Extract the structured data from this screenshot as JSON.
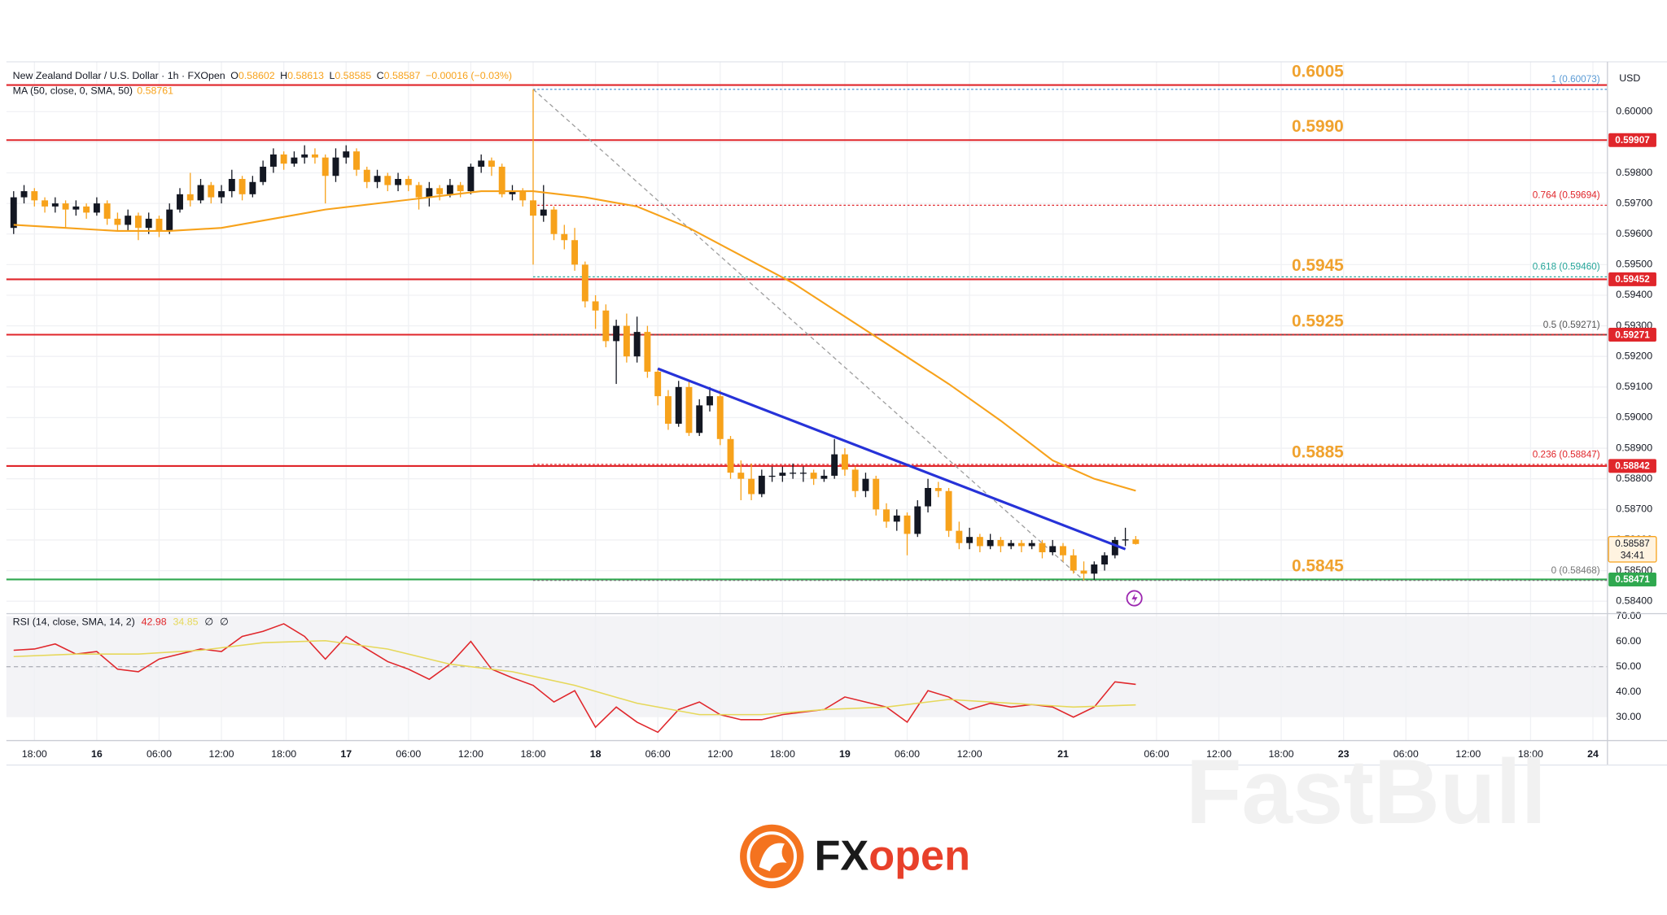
{
  "chart_data": [
    {
      "type": "candlestick",
      "title": "New Zealand Dollar / U.S. Dollar · 1h · FXOpen",
      "ohlc_legend": [
        {
          "key": "O",
          "value": 0.58602
        },
        {
          "key": "H",
          "value": 0.58613
        },
        {
          "key": "L",
          "value": 0.58585
        },
        {
          "key": "C",
          "value": 0.58587
        }
      ],
      "change": "−0.00016 (−0.03%)",
      "currency": "USD",
      "up_color": "#131722",
      "down_color": "#f7a21b",
      "x": [
        0,
        1,
        2,
        3,
        4,
        5,
        6,
        7,
        8,
        9,
        10,
        11,
        12,
        13,
        14,
        15,
        16,
        17,
        18,
        19,
        20,
        21,
        22,
        23,
        24,
        25,
        26,
        27,
        28,
        29,
        30,
        31,
        32,
        33,
        34,
        35,
        36,
        37,
        38,
        39,
        40,
        41,
        42,
        43,
        44,
        45,
        46,
        47,
        48,
        49,
        50,
        51,
        52,
        53,
        54,
        55,
        56,
        57,
        58,
        59,
        60,
        61,
        62,
        63,
        64,
        65,
        66,
        67,
        68,
        69,
        70,
        71,
        72,
        73,
        74,
        75,
        76,
        77,
        78,
        79,
        80,
        81,
        82,
        83,
        84,
        85,
        86,
        87,
        88,
        89,
        90,
        91,
        92,
        93,
        94,
        95,
        96,
        97,
        98,
        99,
        100,
        101,
        102,
        103,
        104,
        105,
        106,
        107,
        108
      ],
      "open": [
        0.5962,
        0.5972,
        0.5974,
        0.5971,
        0.5969,
        0.597,
        0.5968,
        0.5969,
        0.5967,
        0.597,
        0.5965,
        0.5963,
        0.5966,
        0.5962,
        0.5965,
        0.5961,
        0.5968,
        0.5973,
        0.5971,
        0.5976,
        0.5972,
        0.5974,
        0.5978,
        0.5973,
        0.5977,
        0.5982,
        0.5986,
        0.5983,
        0.5985,
        0.5986,
        0.5985,
        0.5979,
        0.5985,
        0.5987,
        0.5981,
        0.5977,
        0.5979,
        0.5976,
        0.5978,
        0.5976,
        0.5972,
        0.5975,
        0.5973,
        0.5976,
        0.5974,
        0.5982,
        0.5984,
        0.5982,
        0.5973,
        0.5974,
        0.5971,
        0.5966,
        0.5968,
        0.596,
        0.5958,
        0.595,
        0.5938,
        0.5935,
        0.5925,
        0.593,
        0.592,
        0.5928,
        0.5915,
        0.5907,
        0.5898,
        0.591,
        0.5895,
        0.5904,
        0.5907,
        0.5893,
        0.5882,
        0.588,
        0.5875,
        0.5881,
        0.5881,
        0.5882,
        0.5882,
        0.5882,
        0.588,
        0.5881,
        0.5888,
        0.5883,
        0.5876,
        0.588,
        0.587,
        0.5866,
        0.5868,
        0.5862,
        0.5871,
        0.5877,
        0.5876,
        0.5863,
        0.5859,
        0.5861,
        0.5858,
        0.586,
        0.5858,
        0.5859,
        0.5858,
        0.5859,
        0.5856,
        0.5858,
        0.5855,
        0.585,
        0.5849,
        0.5852,
        0.5855,
        0.586,
        0.58602
      ],
      "high": [
        0.5974,
        0.5976,
        0.5975,
        0.5972,
        0.5972,
        0.5971,
        0.5971,
        0.597,
        0.5972,
        0.5971,
        0.5967,
        0.5968,
        0.5967,
        0.5967,
        0.5966,
        0.597,
        0.5975,
        0.598,
        0.5978,
        0.5977,
        0.5976,
        0.5981,
        0.5979,
        0.5979,
        0.5984,
        0.5988,
        0.5987,
        0.5987,
        0.5989,
        0.5988,
        0.5986,
        0.5988,
        0.5989,
        0.5988,
        0.5982,
        0.5981,
        0.598,
        0.598,
        0.5979,
        0.5977,
        0.5977,
        0.5976,
        0.5978,
        0.5977,
        0.5983,
        0.5986,
        0.5985,
        0.5983,
        0.5976,
        0.5975,
        0.60073,
        0.5976,
        0.5969,
        0.5963,
        0.5962,
        0.5951,
        0.594,
        0.5937,
        0.5932,
        0.5934,
        0.5933,
        0.593,
        0.5916,
        0.5909,
        0.5912,
        0.5912,
        0.5906,
        0.591,
        0.5909,
        0.5894,
        0.5886,
        0.5885,
        0.5883,
        0.5884,
        0.5884,
        0.5885,
        0.5884,
        0.5883,
        0.5883,
        0.5893,
        0.589,
        0.5884,
        0.5882,
        0.5881,
        0.5872,
        0.587,
        0.5869,
        0.5873,
        0.588,
        0.5879,
        0.5877,
        0.5866,
        0.5864,
        0.5862,
        0.5862,
        0.5861,
        0.586,
        0.586,
        0.586,
        0.586,
        0.586,
        0.5859,
        0.5857,
        0.5853,
        0.5853,
        0.5856,
        0.5861,
        0.5864,
        0.58613
      ],
      "low": [
        0.596,
        0.597,
        0.5969,
        0.5967,
        0.5967,
        0.5962,
        0.5966,
        0.5965,
        0.5966,
        0.5963,
        0.5961,
        0.5961,
        0.5958,
        0.596,
        0.5959,
        0.596,
        0.5967,
        0.5969,
        0.597,
        0.597,
        0.597,
        0.5972,
        0.5971,
        0.5972,
        0.5976,
        0.598,
        0.5981,
        0.5982,
        0.5983,
        0.5983,
        0.597,
        0.5977,
        0.5983,
        0.5979,
        0.5975,
        0.5975,
        0.5974,
        0.5974,
        0.5974,
        0.5968,
        0.5969,
        0.5971,
        0.5972,
        0.5972,
        0.5973,
        0.598,
        0.5979,
        0.5972,
        0.5971,
        0.5969,
        0.595,
        0.5964,
        0.5958,
        0.5955,
        0.5948,
        0.5936,
        0.5929,
        0.5923,
        0.5911,
        0.5918,
        0.5918,
        0.5913,
        0.5904,
        0.5896,
        0.5897,
        0.5894,
        0.5894,
        0.5902,
        0.5891,
        0.588,
        0.5873,
        0.5873,
        0.5874,
        0.5879,
        0.5879,
        0.588,
        0.5879,
        0.5878,
        0.5879,
        0.588,
        0.5881,
        0.5874,
        0.5874,
        0.5868,
        0.5864,
        0.5863,
        0.5855,
        0.5861,
        0.5869,
        0.5874,
        0.5861,
        0.5857,
        0.5857,
        0.5856,
        0.5857,
        0.5856,
        0.5857,
        0.5856,
        0.5857,
        0.5854,
        0.5855,
        0.5853,
        0.5849,
        0.58468,
        0.5847,
        0.585,
        0.5854,
        0.5858,
        0.58585
      ],
      "close": [
        0.5972,
        0.5974,
        0.5971,
        0.5969,
        0.597,
        0.5968,
        0.5969,
        0.5967,
        0.597,
        0.5965,
        0.5963,
        0.5966,
        0.5962,
        0.5965,
        0.5961,
        0.5968,
        0.5973,
        0.5971,
        0.5976,
        0.5972,
        0.5974,
        0.5978,
        0.5973,
        0.5977,
        0.5982,
        0.5986,
        0.5983,
        0.5985,
        0.5986,
        0.5985,
        0.5979,
        0.5985,
        0.5987,
        0.5981,
        0.5977,
        0.5979,
        0.5976,
        0.5978,
        0.5976,
        0.5972,
        0.5975,
        0.5973,
        0.5976,
        0.5974,
        0.5982,
        0.5984,
        0.5982,
        0.5973,
        0.5974,
        0.5971,
        0.5966,
        0.5968,
        0.596,
        0.5958,
        0.595,
        0.5938,
        0.5935,
        0.5925,
        0.593,
        0.592,
        0.5928,
        0.5915,
        0.5907,
        0.5898,
        0.591,
        0.5895,
        0.5904,
        0.5907,
        0.5893,
        0.5882,
        0.588,
        0.5875,
        0.5881,
        0.5881,
        0.5882,
        0.5882,
        0.5882,
        0.588,
        0.5881,
        0.5888,
        0.5883,
        0.5876,
        0.588,
        0.587,
        0.5866,
        0.5868,
        0.5862,
        0.5871,
        0.5877,
        0.5876,
        0.5863,
        0.5859,
        0.5861,
        0.5858,
        0.586,
        0.5858,
        0.5859,
        0.5858,
        0.5859,
        0.5856,
        0.5858,
        0.5855,
        0.585,
        0.5849,
        0.5852,
        0.5855,
        0.586,
        0.58602,
        0.58587
      ],
      "xlim": [
        -0.7,
        153.4
      ],
      "xticks": [
        {
          "value": 2,
          "label": "18:00"
        },
        {
          "value": 8,
          "label": "16"
        },
        {
          "value": 14,
          "label": "06:00"
        },
        {
          "value": 20,
          "label": "12:00"
        },
        {
          "value": 26,
          "label": "18:00"
        },
        {
          "value": 32,
          "label": "17"
        },
        {
          "value": 38,
          "label": "06:00"
        },
        {
          "value": 44,
          "label": "12:00"
        },
        {
          "value": 50,
          "label": "18:00"
        },
        {
          "value": 56,
          "label": "18"
        },
        {
          "value": 62,
          "label": "06:00"
        },
        {
          "value": 68,
          "label": "12:00"
        },
        {
          "value": 74,
          "label": "18:00"
        },
        {
          "value": 80,
          "label": "19"
        },
        {
          "value": 86,
          "label": "06:00"
        },
        {
          "value": 92,
          "label": "12:00"
        },
        {
          "value": 101,
          "label": "21"
        },
        {
          "value": 110,
          "label": "06:00"
        },
        {
          "value": 116,
          "label": "12:00"
        },
        {
          "value": 122,
          "label": "18:00"
        },
        {
          "value": 128,
          "label": "23"
        },
        {
          "value": 134,
          "label": "06:00"
        },
        {
          "value": 140,
          "label": "12:00"
        },
        {
          "value": 146,
          "label": "18:00"
        },
        {
          "value": 152,
          "label": "24"
        }
      ],
      "ylim": [
        0.58361,
        0.60149
      ],
      "yticks": [
        {
          "value": 0.584,
          "label": "0.58400"
        },
        {
          "value": 0.585,
          "label": "0.58500"
        },
        {
          "value": 0.586,
          "label": "0.58600"
        },
        {
          "value": 0.587,
          "label": "0.58700"
        },
        {
          "value": 0.588,
          "label": "0.58800"
        },
        {
          "value": 0.589,
          "label": "0.58900"
        },
        {
          "value": 0.59,
          "label": "0.59000"
        },
        {
          "value": 0.591,
          "label": "0.59100"
        },
        {
          "value": 0.592,
          "label": "0.59200"
        },
        {
          "value": 0.593,
          "label": "0.59300"
        },
        {
          "value": 0.594,
          "label": "0.59400"
        },
        {
          "value": 0.595,
          "label": "0.59500"
        },
        {
          "value": 0.596,
          "label": "0.59600"
        },
        {
          "value": 0.597,
          "label": "0.59700"
        },
        {
          "value": 0.598,
          "label": "0.59800"
        },
        {
          "value": 0.599,
          "label": "0.59900"
        },
        {
          "value": 0.6,
          "label": "0.60000"
        }
      ],
      "grid": true,
      "ma": {
        "name": "MA (50, close, 0, SMA, 50)",
        "last": 0.58761,
        "color": "#f7a21b",
        "x": [
          0,
          5,
          10,
          15,
          20,
          25,
          30,
          35,
          40,
          45,
          50,
          55,
          60,
          65,
          70,
          75,
          80,
          85,
          90,
          95,
          100,
          104,
          108
        ],
        "values": [
          0.5963,
          0.5962,
          0.5961,
          0.5961,
          0.5962,
          0.5965,
          0.5968,
          0.597,
          0.5972,
          0.5974,
          0.5974,
          0.5972,
          0.5969,
          0.5962,
          0.5953,
          0.5944,
          0.5933,
          0.5922,
          0.5911,
          0.5899,
          0.5886,
          0.588,
          0.58761
        ]
      },
      "trendline": {
        "color": "#2632d8",
        "x": [
          62,
          107
        ],
        "values": [
          0.5916,
          0.5857
        ]
      },
      "level_label_color": "#f0a22e",
      "levels": [
        {
          "price": 0.60087,
          "label": 0.6005,
          "color": "#e0262b",
          "box": false
        },
        {
          "price": 0.59907,
          "label": {
            "value": 0.599,
            "label": "0.5990"
          },
          "color": "#e0262b",
          "box": true
        },
        {
          "price": 0.59452,
          "label": 0.5945,
          "color": "#e0262b",
          "box": true
        },
        {
          "price": 0.59271,
          "label": 0.5925,
          "color": "#e0262b",
          "box": true
        },
        {
          "price": 0.58842,
          "label": 0.5885,
          "color": "#e0262b",
          "box": true
        },
        {
          "price": 0.58471,
          "label": 0.5845,
          "color": "#2fa84f",
          "box": true
        }
      ],
      "fib": {
        "x": [
          50,
          103
        ],
        "color": "#9e9e9e",
        "levels": [
          {
            "label": "1 (0.60073)",
            "price": 0.60073,
            "color": "#5b9bd5"
          },
          {
            "label": "0.764 (0.59694)",
            "price": 0.59694,
            "color": "#e0262b"
          },
          {
            "label": "0.618 (0.59460)",
            "price": 0.5946,
            "color": "#26a69a"
          },
          {
            "label": "0.5 (0.59271)",
            "price": 0.59271,
            "color": "#555555"
          },
          {
            "label": "0.236 (0.58847)",
            "price": 0.58847,
            "color": "#e0262b"
          },
          {
            "label": "0 (0.58468)",
            "price": 0.58468,
            "color": "#777777"
          }
        ]
      },
      "current": {
        "price": 0.58587,
        "countdown": "34:41"
      }
    },
    {
      "type": "line",
      "legend": "RSI (14, close, SMA, 14, 2)",
      "extras": [
        "∅",
        "∅"
      ],
      "ylim": [
        20.7,
        70.8
      ],
      "yticks": [
        {
          "value": 30,
          "label": "30.00"
        },
        {
          "value": 40,
          "label": "40.00"
        },
        {
          "value": 50,
          "label": "50.00"
        },
        {
          "value": 60,
          "label": "60.00"
        },
        {
          "value": 70,
          "label": "70.00"
        }
      ],
      "band": [
        30,
        70
      ],
      "midline": 50,
      "series": [
        {
          "color": "#e0262b",
          "last": 42.98,
          "x": [
            0,
            2,
            4,
            6,
            8,
            10,
            12,
            14,
            16,
            18,
            20,
            22,
            24,
            26,
            28,
            30,
            32,
            34,
            36,
            38,
            40,
            42,
            44,
            46,
            48,
            50,
            52,
            54,
            56,
            58,
            60,
            62,
            64,
            66,
            68,
            70,
            72,
            74,
            76,
            78,
            80,
            82,
            84,
            86,
            88,
            90,
            92,
            94,
            96,
            98,
            100,
            102,
            104,
            106,
            108
          ],
          "values": [
            56.5,
            57,
            59,
            55,
            56,
            49,
            48,
            53,
            55,
            57,
            56,
            62,
            64,
            67,
            62,
            53,
            62,
            57,
            52,
            49,
            45,
            51,
            60,
            49,
            45.6,
            42.6,
            36,
            40.5,
            26,
            34,
            28,
            24,
            33,
            36,
            31,
            29,
            29,
            31,
            32,
            33,
            38,
            36,
            34,
            28,
            40.5,
            38,
            33,
            35.5,
            34,
            35,
            34,
            30,
            34,
            44,
            42.98
          ]
        },
        {
          "color": "#e6d85a",
          "last": 34.85,
          "x": [
            0,
            6,
            12,
            18,
            24,
            30,
            36,
            42,
            48,
            54,
            60,
            66,
            72,
            78,
            84,
            90,
            96,
            102,
            108
          ],
          "values": [
            54,
            55,
            55,
            56.5,
            59.5,
            60.3,
            57,
            51,
            48,
            42.6,
            35.5,
            31,
            31,
            33,
            34,
            37,
            35.5,
            34,
            34.85
          ]
        }
      ]
    }
  ],
  "branding": {
    "logo_left": "FX",
    "logo_right": "open",
    "watermark": "FastBull"
  }
}
